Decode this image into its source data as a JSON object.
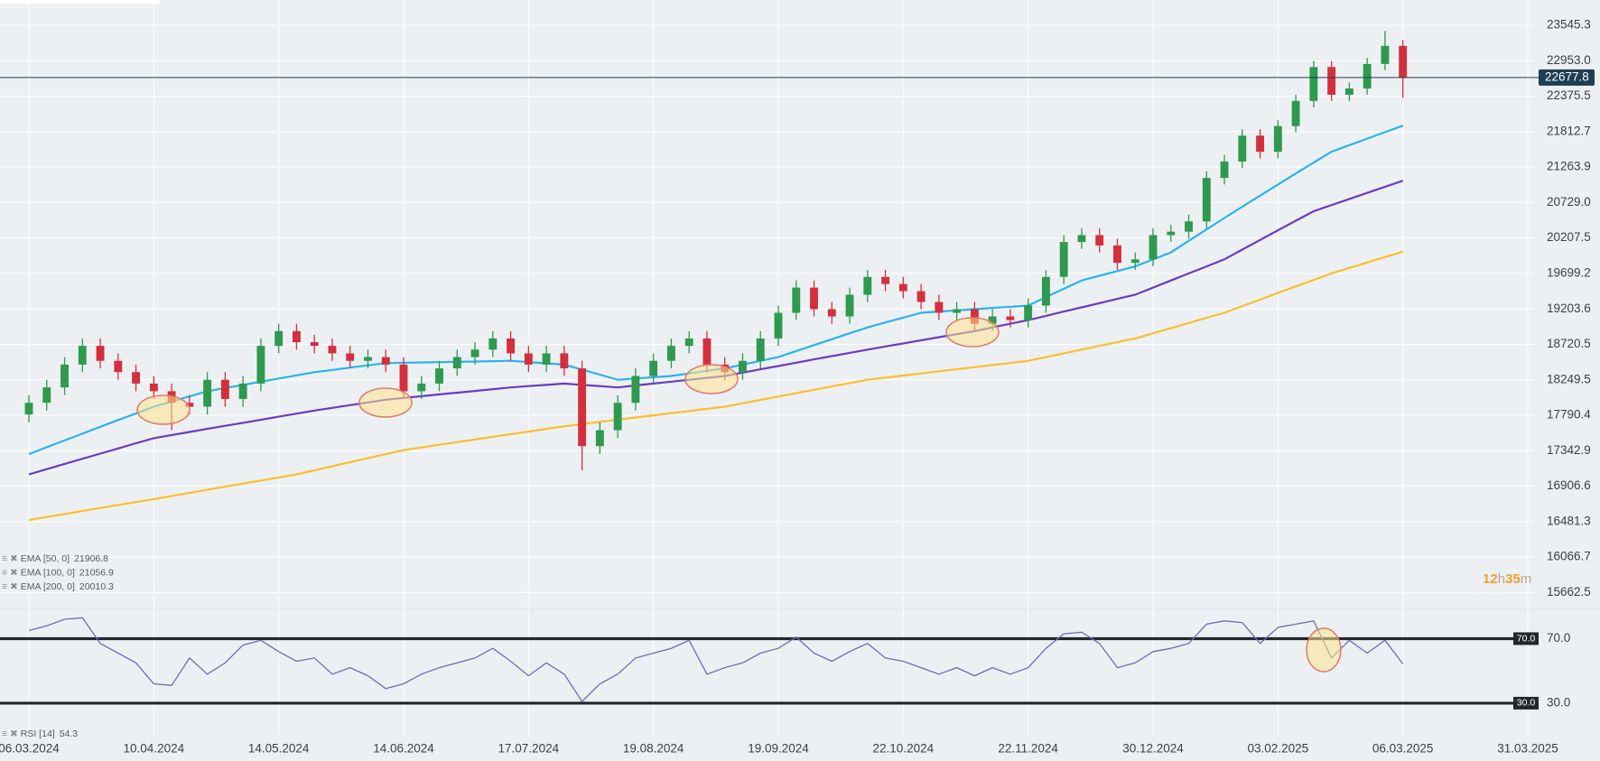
{
  "chart_data": [
    {
      "type": "candlestick",
      "log_scale": true,
      "grid": true,
      "up_color": "#2e9a4e",
      "down_color": "#d3303d",
      "categories": [
        "06.03.2024",
        null,
        null,
        null,
        null,
        null,
        null,
        "10.04.2024",
        null,
        null,
        null,
        null,
        null,
        null,
        "14.05.2024",
        null,
        null,
        null,
        null,
        null,
        null,
        "14.06.2024",
        null,
        null,
        null,
        null,
        null,
        null,
        "17.07.2024",
        null,
        null,
        null,
        null,
        null,
        null,
        "19.08.2024",
        null,
        null,
        null,
        null,
        null,
        null,
        "19.09.2024",
        null,
        null,
        null,
        null,
        null,
        null,
        "22.10.2024",
        null,
        null,
        null,
        null,
        null,
        null,
        "22.11.2024",
        null,
        null,
        null,
        null,
        null,
        null,
        "30.12.2024",
        null,
        null,
        null,
        null,
        null,
        null,
        "03.02.2025",
        null,
        null,
        null,
        null,
        null,
        null,
        "06.03.2025",
        null,
        null,
        null,
        null,
        null,
        null,
        "31.03.2025"
      ],
      "open": [
        17800,
        17950,
        18150,
        18450,
        18700,
        18500,
        18350,
        18200,
        18100,
        17950,
        17900,
        18250,
        18000,
        18200,
        18700,
        18900,
        18750,
        18700,
        18600,
        18500,
        18550,
        18450,
        18100,
        18200,
        18400,
        18550,
        18650,
        18800,
        18600,
        18450,
        18600,
        18400,
        17400,
        17600,
        17950,
        18300,
        18500,
        18700,
        18800,
        18450,
        18350,
        18500,
        18800,
        19150,
        19500,
        19200,
        19100,
        19400,
        19650,
        19550,
        19450,
        19300,
        19150,
        19200,
        19000,
        19100,
        19050,
        19250,
        19650,
        20150,
        20250,
        20100,
        19850,
        19900,
        20250,
        20300,
        20450,
        21100,
        21350,
        21750,
        21500,
        21900,
        22300,
        22850,
        22400,
        22500,
        22900,
        23200,
        null,
        null,
        null,
        null,
        null,
        null,
        null
      ],
      "high": [
        18050,
        18250,
        18550,
        18800,
        18800,
        18600,
        18450,
        18300,
        18200,
        18050,
        18350,
        18350,
        18300,
        18800,
        19000,
        19000,
        18850,
        18800,
        18700,
        18650,
        18650,
        18550,
        18300,
        18500,
        18650,
        18750,
        18900,
        18900,
        18700,
        18700,
        18700,
        18500,
        17700,
        18050,
        18400,
        18600,
        18800,
        18900,
        18900,
        18550,
        18600,
        18900,
        19250,
        19600,
        19600,
        19300,
        19500,
        19750,
        19750,
        19650,
        19550,
        19400,
        19300,
        19300,
        19200,
        19200,
        19350,
        19750,
        20250,
        20350,
        20350,
        20200,
        20000,
        20350,
        20400,
        20550,
        21200,
        21450,
        21850,
        21850,
        22000,
        22400,
        22950,
        22950,
        22600,
        23000,
        23450,
        23300,
        null,
        null,
        null,
        null,
        null,
        null,
        null
      ],
      "low": [
        17700,
        17850,
        18050,
        18350,
        18400,
        18250,
        18100,
        18000,
        17600,
        17800,
        17800,
        17900,
        17900,
        18100,
        18600,
        18650,
        18600,
        18500,
        18400,
        18400,
        18350,
        18000,
        18000,
        18100,
        18300,
        18450,
        18550,
        18500,
        18350,
        18350,
        18300,
        17100,
        17300,
        17500,
        17850,
        18200,
        18400,
        18600,
        18350,
        18250,
        18250,
        18400,
        18700,
        19050,
        19100,
        19000,
        19000,
        19300,
        19450,
        19350,
        19200,
        19050,
        19050,
        18900,
        18900,
        18950,
        18950,
        19150,
        19550,
        20050,
        20000,
        19750,
        19750,
        19800,
        20150,
        20200,
        20350,
        21000,
        21250,
        21400,
        21400,
        21800,
        22200,
        22300,
        22300,
        22400,
        22800,
        22350,
        null,
        null,
        null,
        null,
        null,
        null,
        null
      ],
      "close": [
        17950,
        18150,
        18450,
        18700,
        18500,
        18350,
        18200,
        18100,
        17950,
        17900,
        18250,
        18000,
        18200,
        18700,
        18900,
        18750,
        18700,
        18600,
        18500,
        18550,
        18450,
        18100,
        18200,
        18400,
        18550,
        18650,
        18800,
        18600,
        18450,
        18600,
        18400,
        17400,
        17600,
        17950,
        18300,
        18500,
        18700,
        18800,
        18450,
        18350,
        18500,
        18800,
        19150,
        19500,
        19200,
        19100,
        19400,
        19650,
        19550,
        19450,
        19300,
        19150,
        19200,
        19000,
        19100,
        19050,
        19250,
        19650,
        20150,
        20250,
        20100,
        19850,
        19900,
        20250,
        20300,
        20450,
        21100,
        21350,
        21750,
        21500,
        21900,
        22300,
        22850,
        22400,
        22500,
        22900,
        23200,
        22677.8,
        null,
        null,
        null,
        null,
        null,
        null,
        null
      ],
      "series": [
        {
          "name": "EMA [50, 0]",
          "color": "#29b3f0",
          "values": [
            17300,
            17386,
            17471,
            17557,
            17643,
            17729,
            17814,
            17900,
            17967,
            18033,
            18100,
            18142,
            18183,
            18225,
            18267,
            18308,
            18350,
            18380,
            18410,
            18440,
            18470,
            18474,
            18479,
            18483,
            18487,
            18491,
            18496,
            18500,
            18483,
            18467,
            18450,
            18383,
            18317,
            18250,
            18267,
            18283,
            18300,
            18333,
            18367,
            18400,
            18450,
            18500,
            18550,
            18630,
            18710,
            18790,
            18870,
            18950,
            19017,
            19083,
            19150,
            19167,
            19183,
            19200,
            19217,
            19233,
            19250,
            19367,
            19483,
            19600,
            19667,
            19733,
            19800,
            19900,
            20000,
            20167,
            20333,
            20500,
            20667,
            20833,
            21000,
            21167,
            21333,
            21500,
            21602,
            21703,
            21805,
            21906.8,
            null,
            null,
            null,
            null,
            null,
            null,
            null
          ]
        },
        {
          "name": "EMA [100, 0]",
          "color": "#6a3cc0",
          "values": [
            17050,
            17114,
            17179,
            17243,
            17307,
            17371,
            17436,
            17500,
            17539,
            17578,
            17617,
            17656,
            17694,
            17733,
            17772,
            17811,
            17850,
            17885,
            17920,
            17955,
            17990,
            18013,
            18036,
            18059,
            18081,
            18104,
            18127,
            18150,
            18167,
            18183,
            18200,
            18183,
            18167,
            18150,
            18175,
            18200,
            18225,
            18250,
            18275,
            18300,
            18344,
            18388,
            18431,
            18475,
            18519,
            18563,
            18606,
            18650,
            18692,
            18733,
            18775,
            18817,
            18858,
            18900,
            18950,
            19000,
            19050,
            19108,
            19167,
            19225,
            19283,
            19342,
            19400,
            19500,
            19600,
            19700,
            19800,
            19900,
            20040,
            20180,
            20320,
            20460,
            20600,
            20691,
            20783,
            20874,
            20966,
            21056.9,
            null,
            null,
            null,
            null,
            null,
            null,
            null
          ]
        },
        {
          "name": "EMA [200, 0]",
          "color": "#fbbf2a",
          "values": [
            16500,
            16536,
            16571,
            16607,
            16643,
            16679,
            16714,
            16750,
            16788,
            16825,
            16863,
            16900,
            16938,
            16975,
            17013,
            17050,
            17100,
            17150,
            17200,
            17250,
            17300,
            17350,
            17383,
            17417,
            17450,
            17483,
            17517,
            17550,
            17583,
            17617,
            17650,
            17678,
            17706,
            17733,
            17761,
            17789,
            17817,
            17844,
            17872,
            17900,
            17944,
            17988,
            18031,
            18075,
            18119,
            18163,
            18206,
            18250,
            18278,
            18306,
            18333,
            18361,
            18389,
            18417,
            18444,
            18472,
            18500,
            18550,
            18600,
            18650,
            18700,
            18750,
            18800,
            18870,
            18940,
            19010,
            19080,
            19150,
            19242,
            19333,
            19425,
            19517,
            19608,
            19700,
            19778,
            19855,
            19933,
            20010.3,
            null,
            null,
            null,
            null,
            null,
            null,
            null
          ]
        }
      ],
      "ylim": [
        15504,
        23978
      ],
      "yticks": [
        23545.3,
        {
          "value": 22953,
          "label": "22953.0"
        },
        22375.5,
        21812.7,
        21263.9,
        {
          "value": 20729,
          "label": "20729.0"
        },
        20207.5,
        19699.2,
        19203.6,
        18720.5,
        18249.5,
        17790.4,
        17342.9,
        16906.6,
        16481.3,
        16066.7,
        15662.5
      ],
      "countdown": [
        "12",
        "h",
        "35",
        "m"
      ]
    },
    {
      "type": "line",
      "grid": true,
      "series": [
        {
          "name": "RSI [14]",
          "color": "#6a6eb6",
          "values": [
            75,
            78,
            82,
            83,
            67,
            61,
            55,
            42,
            41,
            58,
            48,
            55,
            66,
            69,
            62,
            56,
            58,
            48,
            52,
            47,
            39,
            42,
            48,
            52,
            55,
            58,
            64,
            56,
            47,
            55,
            48,
            31,
            42,
            48,
            58,
            61,
            64,
            69,
            48,
            52,
            55,
            61,
            64,
            71,
            61,
            56,
            62,
            67,
            58,
            56,
            52,
            48,
            52,
            47,
            52,
            48,
            52,
            64,
            73,
            74,
            67,
            52,
            55,
            62,
            64,
            67,
            79,
            81,
            80,
            67,
            77,
            79,
            81,
            58,
            69,
            61,
            69,
            54.3,
            null,
            null,
            null,
            null,
            null,
            null,
            null
          ]
        }
      ],
      "ylim": [
        15.4,
        86.5
      ],
      "yticks": [
        {
          "value": 70,
          "label": "70.0"
        },
        {
          "value": 30,
          "label": "30.0"
        }
      ],
      "levels": [
        {
          "value": 70,
          "label": "70.0"
        },
        {
          "value": 30,
          "label": "30.0"
        }
      ]
    }
  ]
}
